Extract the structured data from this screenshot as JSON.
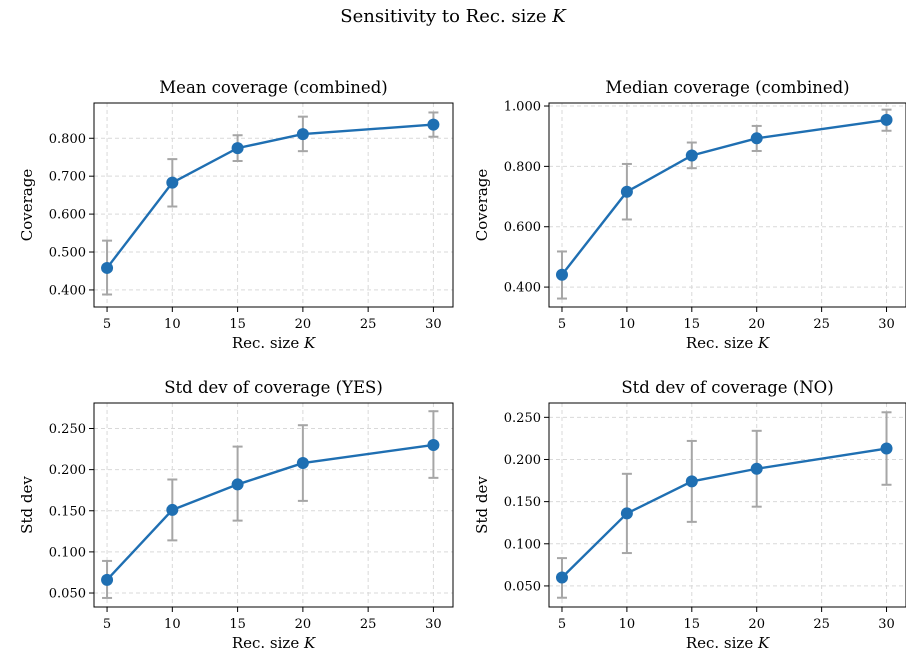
{
  "figure": {
    "suptitle_text": "Sensitivity to Rec. size ",
    "suptitle_var": "K"
  },
  "colors": {
    "series": "#1f6fb2",
    "errorbar": "#a6a6a6",
    "grid": "#d9d9d9"
  },
  "chart_data": [
    {
      "type": "line",
      "title": "Mean coverage (combined)",
      "xlabel": "Rec. size K",
      "ylabel": "Coverage",
      "x": [
        5,
        10,
        15,
        20,
        30
      ],
      "values": [
        0.458,
        0.683,
        0.774,
        0.811,
        0.836
      ],
      "err_low": [
        0.388,
        0.62,
        0.74,
        0.766,
        0.804
      ],
      "err_high": [
        0.53,
        0.745,
        0.808,
        0.857,
        0.868
      ],
      "xlim": [
        4,
        31.5
      ],
      "ylim": [
        0.355,
        0.893
      ],
      "xticks": [
        5,
        10,
        15,
        20,
        25,
        30
      ],
      "yticks": [
        0.4,
        0.5,
        0.6,
        0.7,
        0.8
      ],
      "ytick_labels": [
        "0.400",
        "0.500",
        "0.600",
        "0.700",
        "0.800"
      ],
      "grid": true
    },
    {
      "type": "line",
      "title": "Median coverage (combined)",
      "xlabel": "Rec. size K",
      "ylabel": "Coverage",
      "x": [
        5,
        10,
        15,
        20,
        30
      ],
      "values": [
        0.441,
        0.716,
        0.836,
        0.893,
        0.954
      ],
      "err_low": [
        0.362,
        0.624,
        0.794,
        0.851,
        0.918
      ],
      "err_high": [
        0.518,
        0.808,
        0.879,
        0.934,
        0.988
      ],
      "xlim": [
        4,
        31.5
      ],
      "ylim": [
        0.334,
        1.01
      ],
      "xticks": [
        5,
        10,
        15,
        20,
        25,
        30
      ],
      "yticks": [
        0.4,
        0.6,
        0.8,
        1.0
      ],
      "ytick_labels": [
        "0.400",
        "0.600",
        "0.800",
        "1.000"
      ],
      "grid": true
    },
    {
      "type": "line",
      "title": "Std dev of coverage (YES)",
      "xlabel": "Rec. size K",
      "ylabel": "Std dev",
      "x": [
        5,
        10,
        15,
        20,
        30
      ],
      "values": [
        0.066,
        0.151,
        0.182,
        0.208,
        0.23
      ],
      "err_low": [
        0.044,
        0.114,
        0.138,
        0.162,
        0.19
      ],
      "err_high": [
        0.089,
        0.188,
        0.228,
        0.254,
        0.271
      ],
      "xlim": [
        4,
        31.5
      ],
      "ylim": [
        0.033,
        0.281
      ],
      "xticks": [
        5,
        10,
        15,
        20,
        25,
        30
      ],
      "yticks": [
        0.05,
        0.1,
        0.15,
        0.2,
        0.25
      ],
      "ytick_labels": [
        "0.050",
        "0.100",
        "0.150",
        "0.200",
        "0.250"
      ],
      "grid": true
    },
    {
      "type": "line",
      "title": "Std dev of coverage (NO)",
      "xlabel": "Rec. size K",
      "ylabel": "Std dev",
      "x": [
        5,
        10,
        15,
        20,
        30
      ],
      "values": [
        0.06,
        0.136,
        0.174,
        0.189,
        0.213
      ],
      "err_low": [
        0.036,
        0.089,
        0.126,
        0.144,
        0.17
      ],
      "err_high": [
        0.083,
        0.183,
        0.222,
        0.234,
        0.256
      ],
      "xlim": [
        4,
        31.5
      ],
      "ylim": [
        0.025,
        0.267
      ],
      "xticks": [
        5,
        10,
        15,
        20,
        25,
        30
      ],
      "yticks": [
        0.05,
        0.1,
        0.15,
        0.2,
        0.25
      ],
      "ytick_labels": [
        "0.050",
        "0.100",
        "0.150",
        "0.200",
        "0.250"
      ],
      "grid": true
    }
  ]
}
